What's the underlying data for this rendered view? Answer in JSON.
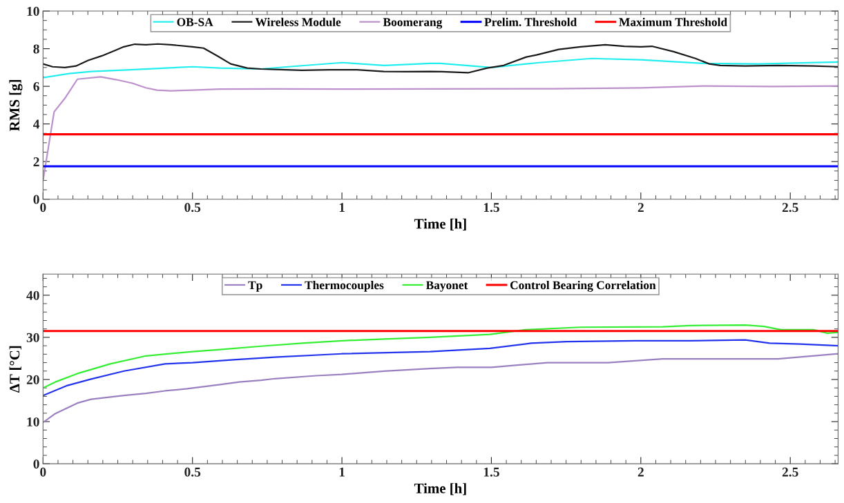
{
  "chart_data": [
    {
      "type": "line",
      "xlabel": "Time [h]",
      "ylabel": "RMS [g]",
      "xlim": [
        0,
        2.66
      ],
      "xticks": [
        0,
        0.5,
        1,
        1.5,
        2,
        2.5
      ],
      "ylim": [
        0,
        10
      ],
      "yticks": [
        0,
        2,
        4,
        6,
        8,
        10
      ],
      "legend": "top",
      "grid": false,
      "series": [
        {
          "name": "OB-SA",
          "color": "#22eeee",
          "x": [
            0,
            0.087,
            0.161,
            0.317,
            0.5,
            0.592,
            0.729,
            0.821,
            1.0,
            1.142,
            1.295,
            1.33,
            1.5,
            1.661,
            1.835,
            2.0,
            2.211,
            2.394,
            2.66
          ],
          "values": [
            6.46,
            6.68,
            6.79,
            6.9,
            7.04,
            6.97,
            6.92,
            7.04,
            7.26,
            7.11,
            7.22,
            7.22,
            7.0,
            7.26,
            7.48,
            7.41,
            7.22,
            7.19,
            7.29
          ]
        },
        {
          "name": "Wireless Module",
          "color": "#1a1a1a",
          "x": [
            0,
            0.032,
            0.073,
            0.11,
            0.151,
            0.197,
            0.243,
            0.27,
            0.307,
            0.344,
            0.385,
            0.427,
            0.5,
            0.537,
            0.583,
            0.628,
            0.683,
            0.729,
            0.775,
            0.867,
            0.959,
            1.0,
            1.05,
            1.14,
            1.216,
            1.295,
            1.335,
            1.422,
            1.486,
            1.541,
            1.615,
            1.651,
            1.725,
            1.798,
            1.881,
            1.945,
            2.0,
            2.037,
            2.11,
            2.183,
            2.229,
            2.266,
            2.349,
            2.459,
            2.578,
            2.66
          ],
          "values": [
            7.19,
            7.04,
            7.0,
            7.08,
            7.38,
            7.62,
            7.92,
            8.1,
            8.24,
            8.21,
            8.25,
            8.21,
            8.1,
            8.03,
            7.62,
            7.19,
            6.97,
            6.92,
            6.9,
            6.85,
            6.88,
            6.88,
            6.88,
            6.79,
            6.78,
            6.79,
            6.78,
            6.72,
            6.97,
            7.11,
            7.55,
            7.67,
            7.96,
            8.1,
            8.21,
            8.13,
            8.1,
            8.13,
            7.84,
            7.48,
            7.19,
            7.11,
            7.08,
            7.11,
            7.08,
            7.04
          ]
        },
        {
          "name": "Boomerang",
          "color": "#bb90cc",
          "x": [
            0,
            0.037,
            0.073,
            0.115,
            0.193,
            0.243,
            0.298,
            0.344,
            0.381,
            0.427,
            0.5,
            0.592,
            0.775,
            1.0,
            1.295,
            1.706,
            2.0,
            2.211,
            2.44,
            2.66
          ],
          "values": [
            0.99,
            4.64,
            5.36,
            6.38,
            6.5,
            6.36,
            6.17,
            5.92,
            5.8,
            5.76,
            5.8,
            5.85,
            5.86,
            5.85,
            5.86,
            5.87,
            5.92,
            6.02,
            5.99,
            6.02
          ]
        }
      ],
      "ref_lines": [
        {
          "axis": "y",
          "value": 1.75,
          "label": "Prelim. Threshold",
          "color": "#0000ff"
        },
        {
          "axis": "y",
          "value": 3.45,
          "label": "Maximum Threshold",
          "color": "#ff0000"
        }
      ]
    },
    {
      "type": "line",
      "xlabel": "Time [h]",
      "ylabel": "ΔT [°C]",
      "xlim": [
        0,
        2.66
      ],
      "xticks": [
        0,
        0.5,
        1,
        1.5,
        2,
        2.5
      ],
      "ylim": [
        0,
        45
      ],
      "yticks": [
        0,
        10,
        20,
        30,
        40
      ],
      "legend": "top",
      "grid": false,
      "ref_lines": [
        {
          "axis": "y",
          "value": 31.5,
          "label": "Control Bearing Correlation",
          "color": "#ff0000"
        }
      ],
      "series": [
        {
          "name": "Tp",
          "color": "#9a80c0",
          "x": [
            0,
            0.041,
            0.115,
            0.161,
            0.271,
            0.344,
            0.408,
            0.482,
            0.592,
            0.656,
            0.729,
            0.775,
            0.913,
            1.0,
            1.142,
            1.295,
            1.385,
            1.5,
            1.688,
            1.89,
            2.073,
            2.459,
            2.66
          ],
          "values": [
            9.8,
            11.9,
            14.4,
            15.3,
            16.2,
            16.7,
            17.3,
            17.8,
            18.8,
            19.4,
            19.8,
            20.2,
            20.9,
            21.2,
            22.0,
            22.6,
            22.9,
            22.9,
            24.0,
            24.0,
            24.9,
            24.9,
            26.1
          ]
        },
        {
          "name": "Thermocouples",
          "color": "#2233ee",
          "x": [
            0,
            0.078,
            0.161,
            0.271,
            0.408,
            0.5,
            0.638,
            0.775,
            1.0,
            1.295,
            1.495,
            1.633,
            1.752,
            1.982,
            2.165,
            2.349,
            2.431,
            2.532,
            2.66
          ],
          "values": [
            16.2,
            18.5,
            20.1,
            22.0,
            23.7,
            24.0,
            24.7,
            25.3,
            26.1,
            26.6,
            27.4,
            28.6,
            29.0,
            29.2,
            29.2,
            29.4,
            28.6,
            28.4,
            28.0
          ]
        },
        {
          "name": "Bayonet",
          "color": "#33ee33",
          "x": [
            0,
            0.041,
            0.115,
            0.225,
            0.344,
            0.5,
            0.592,
            0.729,
            0.867,
            1.0,
            1.142,
            1.295,
            1.495,
            1.615,
            1.798,
            2.073,
            2.165,
            2.349,
            2.413,
            2.468,
            2.578,
            2.624,
            2.66
          ],
          "values": [
            18.0,
            19.4,
            21.4,
            23.7,
            25.6,
            26.6,
            27.1,
            27.9,
            28.6,
            29.2,
            29.6,
            30.0,
            30.7,
            31.8,
            32.4,
            32.5,
            32.8,
            32.9,
            32.6,
            31.8,
            31.8,
            31.0,
            31.2
          ]
        }
      ]
    }
  ]
}
